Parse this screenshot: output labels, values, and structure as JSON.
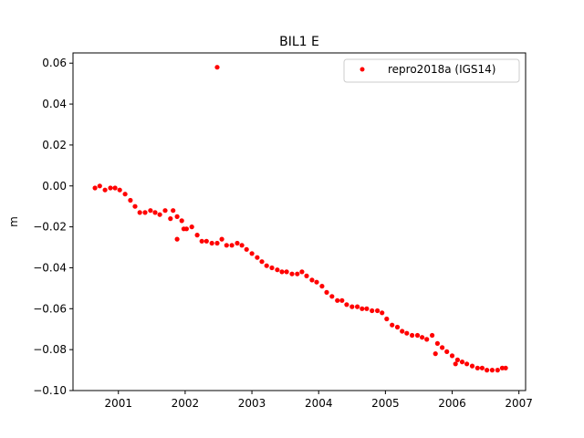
{
  "chart_data": {
    "type": "scatter",
    "title": "BIL1 E",
    "xlabel": "",
    "ylabel": "m",
    "xlim": [
      2000.32,
      2007.1
    ],
    "ylim": [
      -0.1,
      0.065
    ],
    "xticks": [
      2001,
      2002,
      2003,
      2004,
      2005,
      2006,
      2007
    ],
    "xtick_labels": [
      "2001",
      "2002",
      "2003",
      "2004",
      "2005",
      "2006",
      "2007"
    ],
    "yticks": [
      -0.1,
      -0.08,
      -0.06,
      -0.04,
      -0.02,
      0.0,
      0.02,
      0.04,
      0.06
    ],
    "ytick_labels": [
      "−0.10",
      "−0.08",
      "−0.06",
      "−0.04",
      "−0.02",
      "0.00",
      "0.02",
      "0.04",
      "0.06"
    ],
    "grid": false,
    "legend": {
      "placement": "top-right",
      "entries": [
        "repro2018a (IGS14)"
      ]
    },
    "series": [
      {
        "name": "repro2018a (IGS14)",
        "color": "#ff0000",
        "marker": "circle",
        "x": [
          2000.65,
          2000.72,
          2000.8,
          2000.88,
          2000.95,
          2001.02,
          2001.1,
          2001.18,
          2001.25,
          2001.32,
          2001.4,
          2001.48,
          2001.55,
          2001.62,
          2001.7,
          2001.78,
          2001.82,
          2001.88,
          2001.95,
          2002.02,
          2002.1,
          2002.18,
          2002.25,
          2002.32,
          2002.4,
          2002.48,
          2002.55,
          2002.62,
          2002.7,
          2002.78,
          2002.85,
          2002.92,
          2003.0,
          2003.08,
          2003.15,
          2003.22,
          2003.3,
          2003.38,
          2003.45,
          2003.52,
          2003.6,
          2003.68,
          2003.75,
          2003.82,
          2003.9,
          2003.97,
          2004.05,
          2004.12,
          2004.2,
          2004.28,
          2004.35,
          2004.42,
          2004.5,
          2004.58,
          2004.65,
          2004.72,
          2004.8,
          2004.88,
          2004.95,
          2005.02,
          2005.1,
          2005.18,
          2005.25,
          2005.32,
          2005.4,
          2005.48,
          2005.55,
          2005.62,
          2005.7,
          2005.78,
          2005.85,
          2005.92,
          2006.0,
          2006.08,
          2006.15,
          2006.22,
          2006.3,
          2006.38,
          2006.45,
          2006.52,
          2006.6,
          2006.68,
          2006.75,
          2006.8,
          2001.88,
          2001.98,
          2002.48,
          2005.75,
          2006.05
        ],
        "y": [
          -0.001,
          0.0,
          -0.002,
          -0.001,
          -0.001,
          -0.002,
          -0.004,
          -0.007,
          -0.01,
          -0.013,
          -0.013,
          -0.012,
          -0.013,
          -0.014,
          -0.012,
          -0.016,
          -0.012,
          -0.015,
          -0.017,
          -0.021,
          -0.02,
          -0.024,
          -0.027,
          -0.027,
          -0.028,
          -0.028,
          -0.026,
          -0.029,
          -0.029,
          -0.028,
          -0.029,
          -0.031,
          -0.033,
          -0.035,
          -0.037,
          -0.039,
          -0.04,
          -0.041,
          -0.042,
          -0.042,
          -0.043,
          -0.043,
          -0.042,
          -0.044,
          -0.046,
          -0.047,
          -0.049,
          -0.052,
          -0.054,
          -0.056,
          -0.056,
          -0.058,
          -0.059,
          -0.059,
          -0.06,
          -0.06,
          -0.061,
          -0.061,
          -0.062,
          -0.065,
          -0.068,
          -0.069,
          -0.071,
          -0.072,
          -0.073,
          -0.073,
          -0.074,
          -0.075,
          -0.073,
          -0.077,
          -0.079,
          -0.081,
          -0.083,
          -0.085,
          -0.086,
          -0.087,
          -0.088,
          -0.089,
          -0.089,
          -0.09,
          -0.09,
          -0.09,
          -0.089,
          -0.089,
          -0.026,
          -0.021,
          0.058,
          -0.082,
          -0.087
        ]
      }
    ]
  }
}
